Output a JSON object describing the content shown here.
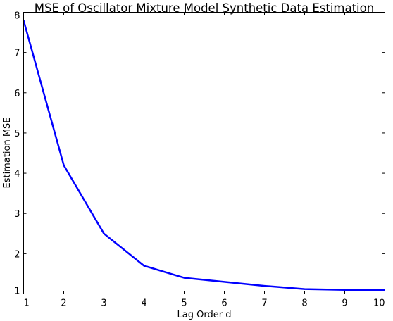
{
  "chart_data": {
    "type": "line",
    "title": "MSE of Oscillator Mixture Model Synthetic Data Estimation",
    "xlabel": "Lag Order d",
    "ylabel": "Estimation MSE",
    "xlim": [
      1,
      10
    ],
    "ylim": [
      1,
      8
    ],
    "xticks": [
      "1",
      "2",
      "3",
      "4",
      "5",
      "6",
      "7",
      "8",
      "9",
      "10"
    ],
    "yticks": [
      "1",
      "2",
      "3",
      "4",
      "5",
      "6",
      "7",
      "8"
    ],
    "grid": false,
    "series": [
      {
        "color": "#0000ff",
        "x": [
          1,
          2,
          3,
          4,
          5,
          6,
          7,
          8,
          9,
          10
        ],
        "y": [
          7.8,
          4.2,
          2.5,
          1.7,
          1.4,
          1.3,
          1.2,
          1.12,
          1.1,
          1.1
        ]
      }
    ]
  }
}
